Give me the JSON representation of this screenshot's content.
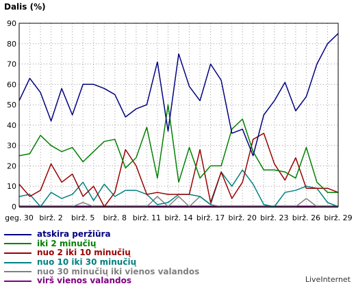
{
  "chart_data": {
    "type": "line",
    "ylabel": "Dalis (%)",
    "ylim": [
      0,
      90
    ],
    "yticks": [
      0,
      10,
      20,
      30,
      40,
      50,
      60,
      70,
      80,
      90
    ],
    "grid": true,
    "x_count": 31,
    "xtick_labels": [
      {
        "i": 0,
        "label": "geg. 30"
      },
      {
        "i": 3,
        "label": "birž. 2"
      },
      {
        "i": 6,
        "label": "birž. 5"
      },
      {
        "i": 9,
        "label": "birž. 8"
      },
      {
        "i": 12,
        "label": "birž. 11"
      },
      {
        "i": 15,
        "label": "birž. 14"
      },
      {
        "i": 18,
        "label": "birž. 17"
      },
      {
        "i": 21,
        "label": "birž. 20"
      },
      {
        "i": 24,
        "label": "birž. 23"
      },
      {
        "i": 27,
        "label": "birž. 26"
      },
      {
        "i": 30,
        "label": "birž. 29"
      }
    ],
    "series": [
      {
        "name": "atskira peržiūra",
        "color": "#000080",
        "values": [
          52,
          63,
          56,
          42,
          58,
          45,
          60,
          60,
          58,
          55,
          44,
          48,
          50,
          71,
          37,
          75,
          59,
          52,
          70,
          62,
          36,
          38,
          25,
          45,
          52,
          61,
          47,
          54,
          70,
          80,
          85
        ]
      },
      {
        "name": "iki 2 minučių",
        "color": "#008000",
        "values": [
          25,
          26,
          35,
          30,
          27,
          29,
          22,
          27,
          32,
          33,
          19,
          24,
          39,
          14,
          50,
          12,
          29,
          14,
          20,
          20,
          38,
          43,
          27,
          18,
          18,
          17,
          14,
          29,
          12,
          7,
          7
        ]
      },
      {
        "name": "nuo 2 iki 10 minučių",
        "color": "#990000",
        "values": [
          11,
          5,
          8,
          21,
          12,
          16,
          5,
          10,
          0,
          7,
          28,
          20,
          6,
          7,
          6,
          6,
          6,
          28,
          2,
          17,
          4,
          12,
          33,
          36,
          21,
          13,
          24,
          9,
          9,
          9,
          7
        ]
      },
      {
        "name": "nuo 10 iki 30 minučių",
        "color": "#008080",
        "values": [
          5,
          6,
          0,
          7,
          4,
          6,
          12,
          3,
          11,
          5,
          8,
          8,
          6,
          1,
          2,
          6,
          6,
          5,
          1,
          17,
          10,
          18,
          11,
          1,
          0,
          7,
          8,
          10,
          9,
          2,
          0
        ]
      },
      {
        "name": "nuo 30 minučių iki vienos valandos",
        "color": "#808080",
        "values": [
          0,
          0,
          0,
          0,
          0,
          0,
          2,
          0,
          0,
          0,
          0,
          0,
          0,
          5,
          0,
          5,
          0,
          5,
          1,
          0,
          0,
          0,
          0,
          0,
          0,
          0,
          0,
          4,
          0,
          0,
          0
        ]
      },
      {
        "name": "virš vienos valandos",
        "color": "#800080",
        "values": [
          0,
          0,
          0,
          0,
          0,
          0,
          0,
          0,
          0,
          0,
          0,
          0,
          0,
          0,
          0,
          0,
          0,
          0,
          0,
          0,
          0,
          0,
          0,
          0,
          0,
          0,
          0,
          0,
          0,
          0,
          0
        ]
      }
    ]
  },
  "credit": "LiveInternet"
}
